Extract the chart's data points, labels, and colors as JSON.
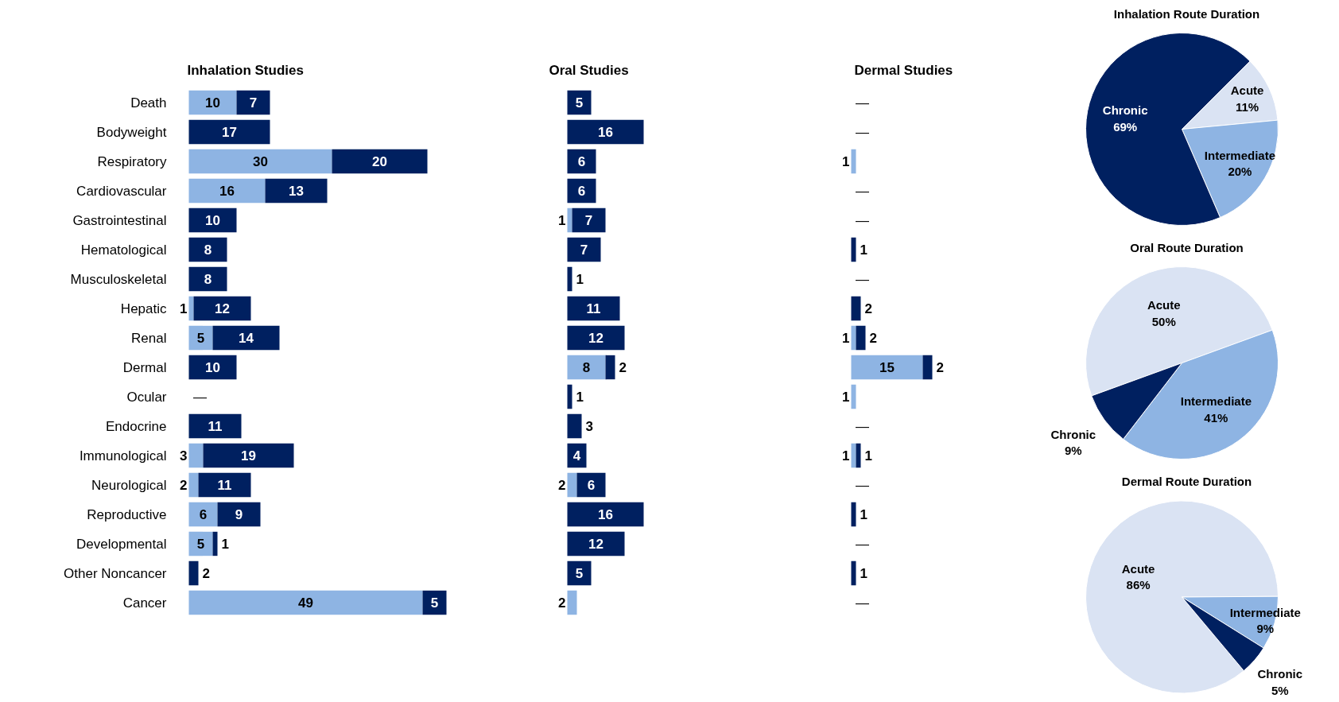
{
  "chart_data": [
    {
      "type": "bar",
      "orientation": "horizontal",
      "stacked": true,
      "title": "Inhalation Studies",
      "tick_labels": "y",
      "categories": [
        "Death",
        "Bodyweight",
        "Respiratory",
        "Cardiovascular",
        "Gastrointestinal",
        "Hematological",
        "Musculoskeletal",
        "Hepatic",
        "Renal",
        "Dermal",
        "Ocular",
        "Endocrine",
        "Immunological",
        "Neurological",
        "Reproductive",
        "Developmental",
        "Other Noncancer",
        "Cancer"
      ],
      "series": [
        {
          "color": "#8eb4e3",
          "values": [
            10,
            null,
            30,
            16,
            null,
            null,
            null,
            1,
            5,
            null,
            null,
            null,
            3,
            2,
            6,
            5,
            null,
            49
          ],
          "value_labels": [
            "10",
            null,
            "30",
            "16",
            null,
            null,
            null,
            "1",
            "5",
            null,
            null,
            null,
            "3",
            "2",
            "6",
            "5",
            null,
            "49"
          ]
        },
        {
          "color": "#002060",
          "values": [
            7,
            17,
            20,
            13,
            10,
            8,
            8,
            12,
            14,
            10,
            0,
            11,
            19,
            11,
            9,
            1,
            2,
            5
          ],
          "value_labels": [
            "7",
            "17",
            "20",
            "13",
            "10",
            "8",
            "8",
            "12",
            "14",
            "10",
            "—",
            "11",
            "19",
            "11",
            "9",
            "1",
            "2",
            "5"
          ]
        }
      ]
    },
    {
      "type": "bar",
      "orientation": "horizontal",
      "stacked": true,
      "title": "Oral Studies",
      "tick_labels": false,
      "categories": [
        null,
        null,
        null,
        null,
        null,
        null,
        null,
        null,
        null,
        null,
        null,
        null,
        null,
        null,
        null,
        null,
        null,
        null
      ],
      "series": [
        {
          "color": "#8eb4e3",
          "values": [
            null,
            null,
            null,
            null,
            1,
            null,
            null,
            null,
            null,
            8,
            null,
            null,
            null,
            2,
            null,
            null,
            null,
            2
          ],
          "value_labels": [
            null,
            null,
            null,
            null,
            "1",
            null,
            null,
            null,
            null,
            "8",
            null,
            null,
            null,
            "2",
            null,
            null,
            null,
            "2"
          ]
        },
        {
          "color": "#002060",
          "values": [
            5,
            16,
            6,
            6,
            7,
            7,
            1,
            11,
            12,
            2,
            1,
            3,
            4,
            6,
            16,
            12,
            5,
            null
          ],
          "value_labels": [
            "5",
            "16",
            "6",
            "6",
            "7",
            "7",
            "1",
            "11",
            "12",
            "2",
            "1",
            "3",
            "4",
            "6",
            "16",
            "12",
            "5",
            null
          ]
        }
      ]
    },
    {
      "type": "bar",
      "orientation": "horizontal",
      "stacked": true,
      "title": "Dermal Studies",
      "tick_labels": false,
      "categories": [
        null,
        null,
        null,
        null,
        null,
        null,
        null,
        null,
        null,
        null,
        null,
        null,
        null,
        null,
        null,
        null,
        null,
        null
      ],
      "series": [
        {
          "color": "#8eb4e3",
          "values": [
            null,
            null,
            1,
            null,
            null,
            null,
            null,
            null,
            1,
            15,
            1,
            null,
            1,
            null,
            null,
            null,
            null,
            null
          ],
          "value_labels": [
            null,
            null,
            "1",
            null,
            null,
            null,
            null,
            null,
            "1",
            "15",
            "1",
            null,
            "1",
            null,
            null,
            null,
            null,
            null
          ]
        },
        {
          "color": "#002060",
          "values": [
            0,
            0,
            null,
            0,
            0,
            1,
            0,
            2,
            2,
            2,
            null,
            0,
            1,
            0,
            1,
            0,
            1,
            0
          ],
          "value_labels": [
            "—",
            "—",
            null,
            "—",
            "—",
            "1",
            "—",
            "2",
            "2",
            "2",
            null,
            "—",
            "1",
            "—",
            "1",
            "—",
            "1",
            "—"
          ]
        }
      ]
    },
    {
      "type": "pie",
      "title": "Inhalation Route Duration",
      "categories": [
        "Acute",
        "Intermediate",
        "Chronic"
      ],
      "values": [
        11,
        20,
        69
      ],
      "colors": [
        "#dae3f3",
        "#8eb4e3",
        "#002060"
      ],
      "value_labels": [
        "11%",
        "20%",
        "69%"
      ]
    },
    {
      "type": "pie",
      "title": "Oral Route Duration",
      "categories": [
        "Acute",
        "Intermediate",
        "Chronic"
      ],
      "values": [
        50,
        41,
        9
      ],
      "colors": [
        "#dae3f3",
        "#8eb4e3",
        "#002060"
      ],
      "value_labels": [
        "50%",
        "41%",
        "9%"
      ]
    },
    {
      "type": "pie",
      "title": "Dermal Route Duration",
      "categories": [
        "Acute",
        "Intermediate",
        "Chronic"
      ],
      "values": [
        86,
        9,
        5
      ],
      "colors": [
        "#dae3f3",
        "#8eb4e3",
        "#002060"
      ],
      "value_labels": [
        "86%",
        "9%",
        "5%"
      ]
    }
  ]
}
